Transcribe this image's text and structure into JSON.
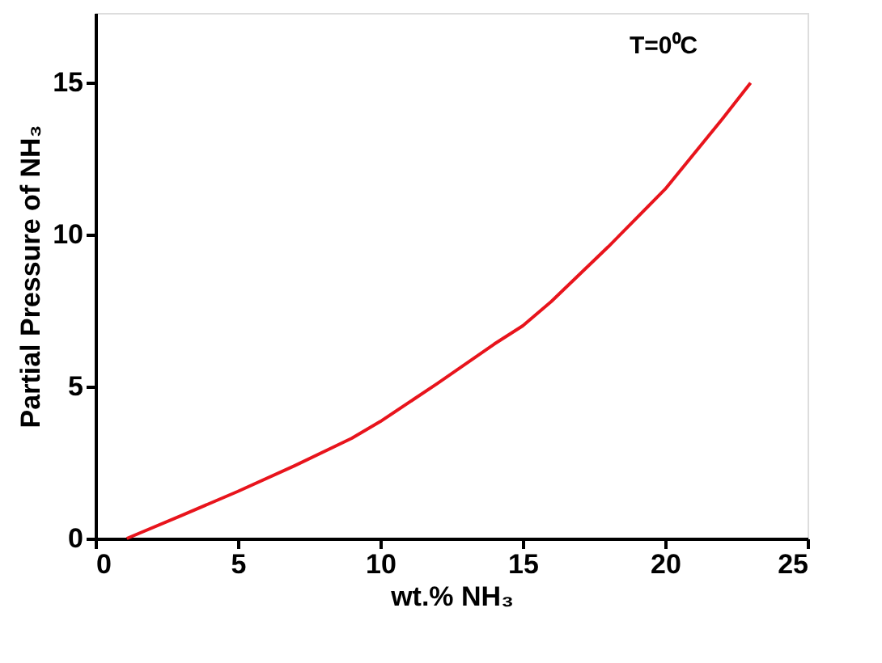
{
  "chart_data": {
    "type": "line",
    "xlabel": "wt.% NH₃",
    "ylabel": "Partial Pressure of NH₃",
    "annotations": [
      "T=0⁰C"
    ],
    "x": [
      1.1,
      3,
      5,
      7,
      9,
      10,
      12,
      14,
      15,
      16,
      18,
      20,
      22,
      23
    ],
    "series": [
      {
        "color": "#e8141c",
        "values": [
          0,
          0.75,
          1.55,
          2.4,
          3.3,
          3.85,
          5.1,
          6.4,
          7.0,
          7.8,
          9.6,
          11.5,
          13.8,
          15.0
        ]
      }
    ],
    "xlim": [
      0,
      25
    ],
    "xticks": [
      0,
      5,
      10,
      15,
      20,
      25
    ],
    "ylim": [
      0,
      17.3
    ],
    "yticks": [
      0,
      5,
      10,
      15
    ],
    "grid": false,
    "marker": "none",
    "line_style": "solid"
  }
}
